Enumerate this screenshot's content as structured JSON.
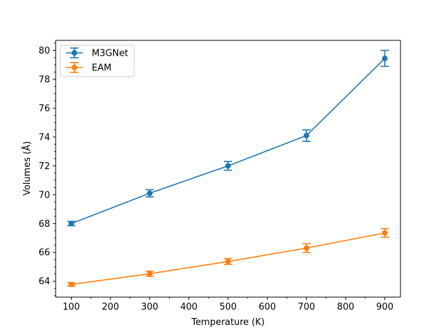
{
  "chart_data": {
    "type": "line",
    "title": "",
    "xlabel": "Temperature (K)",
    "ylabel": "Volumes (Å)",
    "xlim": [
      60,
      940
    ],
    "ylim": [
      62.9,
      80.7
    ],
    "xticks": [
      100,
      200,
      300,
      400,
      500,
      600,
      700,
      800,
      900
    ],
    "yticks": [
      64,
      66,
      68,
      70,
      72,
      74,
      76,
      78,
      80
    ],
    "grid": false,
    "legend_position": "top-left",
    "x": [
      100,
      300,
      500,
      700,
      900
    ],
    "series": [
      {
        "name": "M3GNet",
        "color": "#1f77b4",
        "values": [
          68.0,
          70.1,
          72.0,
          74.1,
          79.45
        ],
        "errors": [
          0.15,
          0.25,
          0.3,
          0.4,
          0.55
        ]
      },
      {
        "name": "EAM",
        "color": "#ff7f0e",
        "values": [
          63.78,
          64.52,
          65.37,
          66.3,
          67.35
        ],
        "errors": [
          0.12,
          0.18,
          0.2,
          0.3,
          0.3
        ]
      }
    ]
  }
}
